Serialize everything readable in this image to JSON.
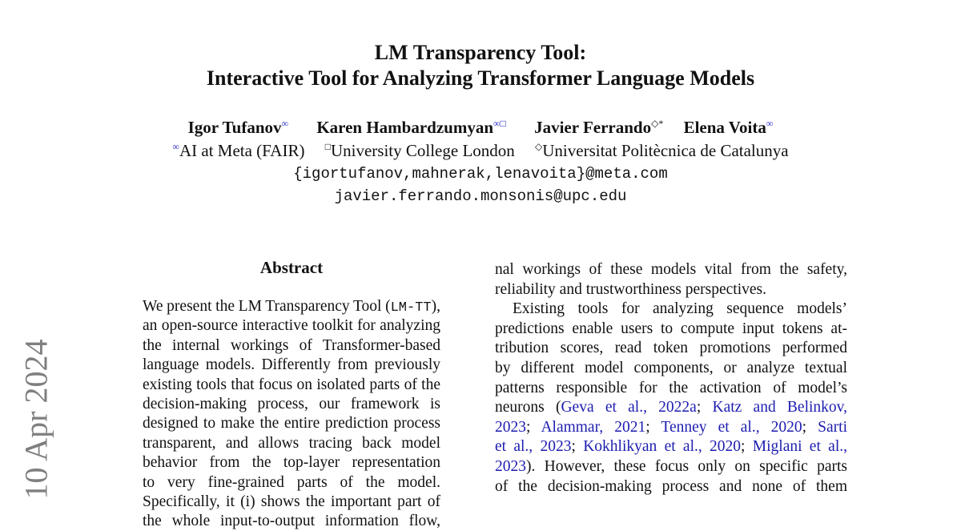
{
  "sidebar_date": "10 Apr 2024",
  "title": [
    "LM Transparency Tool:",
    "Interactive Tool for Analyzing Transformer Language Models"
  ],
  "authors": [
    {
      "name": "Igor Tufanov",
      "marks": "∞"
    },
    {
      "name": "Karen Hambardzumyan",
      "marks": "∞□"
    },
    {
      "name": "Javier Ferrando",
      "marks": "◇*"
    },
    {
      "name": "Elena Voita",
      "marks": "∞"
    }
  ],
  "affiliations": [
    {
      "mark": "∞",
      "name": "AI at Meta (FAIR)"
    },
    {
      "mark": "□",
      "name": "University College London"
    },
    {
      "mark": "◇",
      "name": "Universitat Politècnica de Catalunya"
    }
  ],
  "emails": [
    "{igortufanov,mahnerak,lenavoita}@meta.com",
    "javier.ferrando.monsonis@upc.edu"
  ],
  "abstract_heading": "Abstract",
  "left_column": [
    [
      {
        "t": "We present the LM Transparency Tool ("
      },
      {
        "t": "LM-TT",
        "mono": true
      },
      {
        "t": "),"
      }
    ],
    [
      {
        "t": "an open-source interactive toolkit for analyzing"
      }
    ],
    [
      {
        "t": "the internal workings of Transformer-based"
      }
    ],
    [
      {
        "t": "language models. Differently from previously"
      }
    ],
    [
      {
        "t": "existing tools that focus on isolated parts of the"
      }
    ],
    [
      {
        "t": "decision-making process, our framework is"
      }
    ],
    [
      {
        "t": "designed to make the entire prediction process"
      }
    ],
    [
      {
        "t": "transparent, and allows tracing back model"
      }
    ],
    [
      {
        "t": "behavior from the top-layer representation"
      }
    ],
    [
      {
        "t": "to very fine-grained parts of the model."
      }
    ],
    [
      {
        "t": "Specifically, it (i) shows the important part of"
      }
    ],
    [
      {
        "t": "the whole input-to-output information flow,"
      }
    ]
  ],
  "right_column": [
    [
      {
        "t": "nal workings of these models vital from the safety,"
      }
    ],
    [
      {
        "t": "reliability and trustworthiness perspectives."
      }
    ],
    [
      {
        "t": "Existing tools for analyzing sequence models’"
      }
    ],
    [
      {
        "t": "predictions enable users to compute input tokens at-"
      }
    ],
    [
      {
        "t": "tribution scores, read token promotions performed"
      }
    ],
    [
      {
        "t": "by different model components, or analyze textual"
      }
    ],
    [
      {
        "t": "patterns responsible for the activation of model’s"
      }
    ],
    [
      {
        "t": "neurons ("
      },
      {
        "t": "Geva et al., 2022a",
        "link": true
      },
      {
        "t": "; "
      },
      {
        "t": "Katz and Belinkov,",
        "link": true
      }
    ],
    [
      {
        "t": "2023",
        "link": true
      },
      {
        "t": "; "
      },
      {
        "t": "Alammar, 2021",
        "link": true
      },
      {
        "t": "; "
      },
      {
        "t": "Tenney et al., 2020",
        "link": true
      },
      {
        "t": "; "
      },
      {
        "t": "Sarti",
        "link": true
      }
    ],
    [
      {
        "t": "et al., 2023",
        "link": true
      },
      {
        "t": "; "
      },
      {
        "t": "Kokhlikyan et al., 2020",
        "link": true
      },
      {
        "t": "; "
      },
      {
        "t": "Miglani et al.,",
        "link": true
      }
    ],
    [
      {
        "t": "2023",
        "link": true
      },
      {
        "t": "). However, these focus only on specific parts"
      }
    ],
    [
      {
        "t": "of the decision-making process and none of them"
      }
    ]
  ],
  "colors": {
    "link": "#1d1db0",
    "mark": "#2626c8",
    "sidebar": "#7f7f7f"
  }
}
